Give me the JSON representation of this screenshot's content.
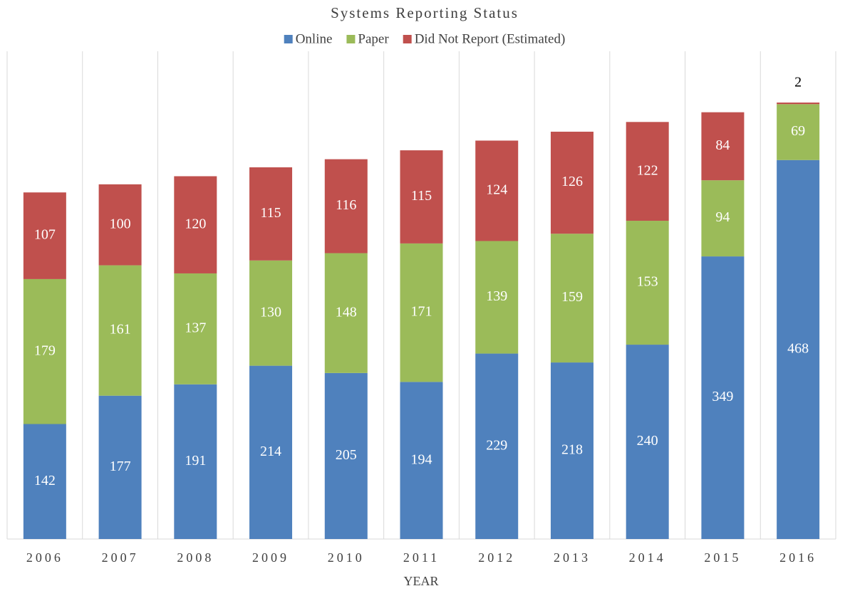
{
  "chart_data": {
    "type": "stacked_bar",
    "title": "Systems Reporting Status",
    "x_label": "YEAR",
    "categories": [
      "2006",
      "2007",
      "2008",
      "2009",
      "2010",
      "2011",
      "2012",
      "2013",
      "2014",
      "2015",
      "2016"
    ],
    "series": [
      {
        "name": "Online",
        "color": "#4f81bd",
        "values": [
          142,
          177,
          191,
          214,
          205,
          194,
          229,
          218,
          240,
          349,
          468
        ]
      },
      {
        "name": "Paper",
        "color": "#9bbb59",
        "values": [
          179,
          161,
          137,
          130,
          148,
          171,
          139,
          159,
          153,
          94,
          69
        ]
      },
      {
        "name": "Did Not Report (Estimated)",
        "color": "#c0504d",
        "values": [
          107,
          100,
          120,
          115,
          116,
          115,
          124,
          126,
          122,
          84,
          2
        ]
      }
    ],
    "legend": "top"
  }
}
